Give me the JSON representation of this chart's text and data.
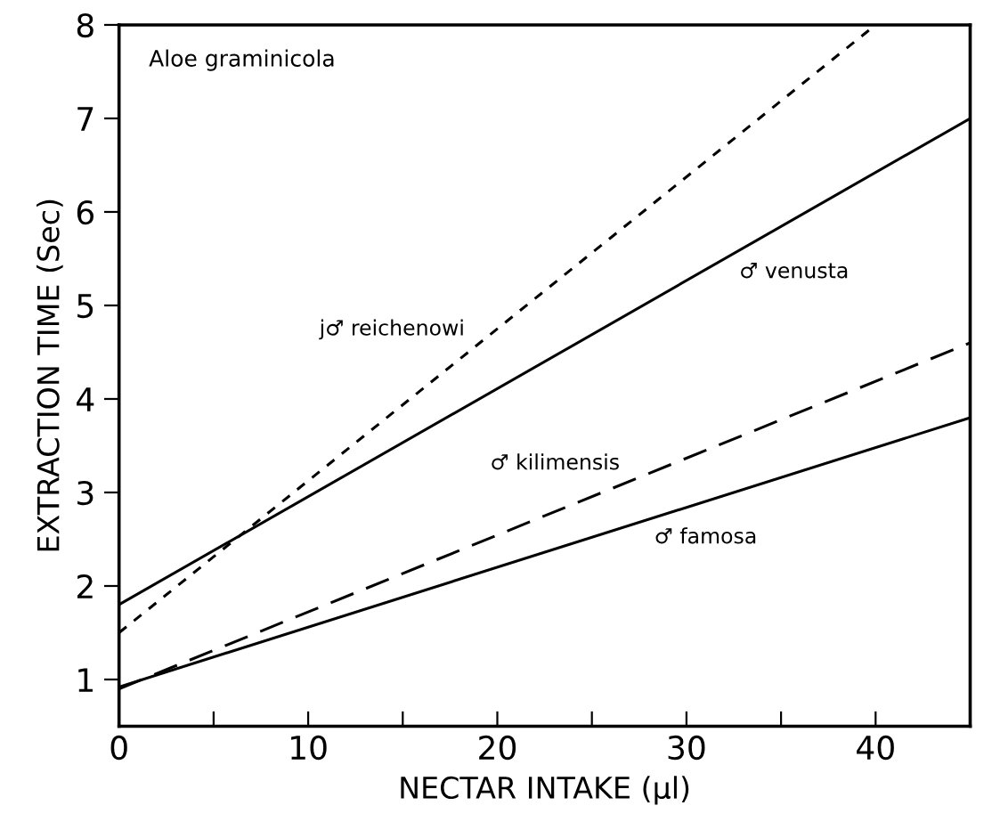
{
  "chart_data": {
    "type": "line",
    "title": "Aloe graminicola",
    "xlabel": "NECTAR INTAKE (μl)",
    "ylabel": "EXTRACTION TIME (Sec)",
    "xlim": [
      0,
      45
    ],
    "ylim": [
      0.5,
      8
    ],
    "xticks": [
      0,
      {
        "value": 5,
        "label": null
      },
      10,
      {
        "value": 15,
        "label": null
      },
      20,
      {
        "value": 25,
        "label": null
      },
      30,
      {
        "value": 35,
        "label": null
      },
      40
    ],
    "yticks": [
      1,
      2,
      3,
      4,
      5,
      6,
      7,
      8
    ],
    "grid": false,
    "legend": false,
    "marker": "none",
    "series": [
      {
        "name": "j♂ reichenowi",
        "color": "#000000",
        "line_style": "dotted",
        "x": [
          0,
          40
        ],
        "values": [
          1.5,
          8
        ]
      },
      {
        "name": "♂ venusta",
        "color": "#000000",
        "line_style": "solid",
        "x": [
          0,
          45
        ],
        "values": [
          1.8,
          7.0
        ]
      },
      {
        "name": "♂ kilimensis",
        "color": "#000000",
        "line_style": "dashed",
        "x": [
          0,
          45
        ],
        "values": [
          0.9,
          4.6
        ]
      },
      {
        "name": "♂ famosa",
        "color": "#000000",
        "line_style": "solid",
        "x": [
          0,
          45
        ],
        "values": [
          0.92,
          3.8
        ]
      }
    ]
  }
}
